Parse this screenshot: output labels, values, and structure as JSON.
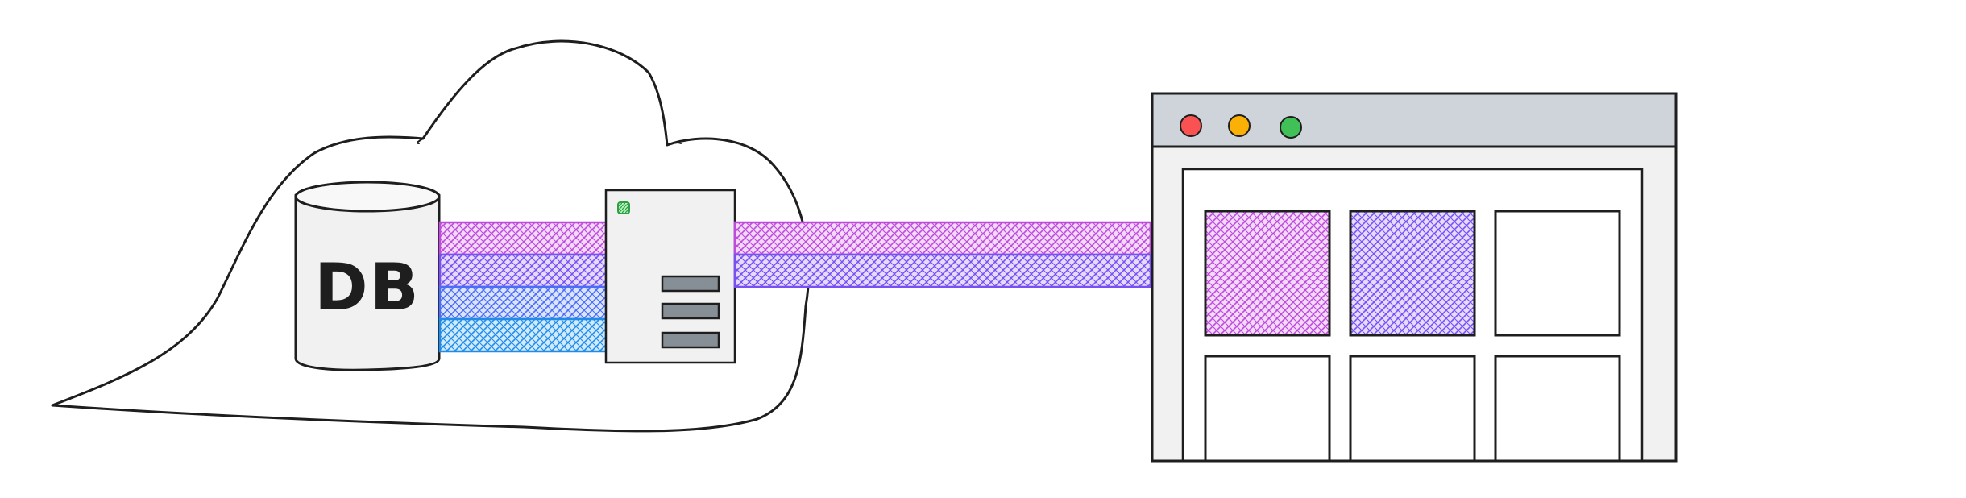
{
  "database": {
    "label": "DB"
  },
  "colors": {
    "magenta": "#be4bdb",
    "violet": "#7950f2",
    "indigo": "#4c6ef5",
    "blue": "#228be6",
    "green": "#40c057",
    "close_dot": "#fa5252",
    "minimize_dot": "#fab005",
    "maximize_dot": "#40c057",
    "titlebar": "#ced4da",
    "panel": "#f1f1f1",
    "bars": "#868e96"
  },
  "server": {
    "status_light": "green",
    "bar_count": 3
  },
  "db_streams": [
    "magenta",
    "violet",
    "indigo",
    "blue"
  ],
  "browser_streams": [
    "magenta",
    "violet"
  ],
  "browser": {
    "window_dots": [
      "close",
      "minimize",
      "maximize"
    ],
    "tiles": [
      {
        "fill": "magenta"
      },
      {
        "fill": "violet"
      },
      {
        "fill": "none"
      },
      {
        "fill": "none"
      },
      {
        "fill": "none"
      },
      {
        "fill": "none"
      }
    ]
  }
}
